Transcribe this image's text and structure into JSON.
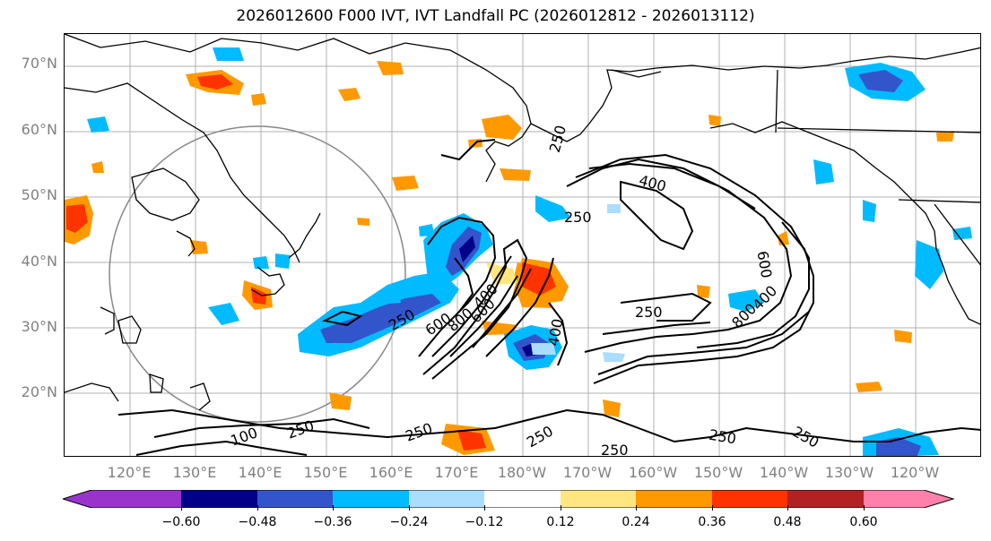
{
  "title": "2026012600 F000 IVT, IVT Landfall PC (2026012812 - 2026013112)",
  "lat_labels": [
    "70°N",
    "60°N",
    "50°N",
    "40°N",
    "30°N",
    "20°N"
  ],
  "lon_labels": [
    "120°E",
    "130°E",
    "140°E",
    "150°E",
    "160°E",
    "170°E",
    "180°W",
    "170°W",
    "160°W",
    "150°W",
    "140°W",
    "130°W",
    "120°W"
  ],
  "colorbar": {
    "ticks": [
      "−0.60",
      "−0.48",
      "−0.36",
      "−0.24",
      "−0.12",
      "0.12",
      "0.24",
      "0.36",
      "0.48",
      "0.60"
    ],
    "bins": [
      {
        "color": "#9933cc"
      },
      {
        "color": "#000088"
      },
      {
        "color": "#3355cc"
      },
      {
        "color": "#00bbff"
      },
      {
        "color": "#aaddff"
      },
      {
        "color": "#ffffff"
      },
      {
        "color": "#ffe680"
      },
      {
        "color": "#ff9900"
      },
      {
        "color": "#ff3300"
      },
      {
        "color": "#b22222"
      },
      {
        "color": "#ff80aa"
      }
    ]
  },
  "contour_labels": [
    "250",
    "400",
    "250",
    "250",
    "600",
    "800",
    "400",
    "600",
    "400",
    "600",
    "250",
    "800",
    "400",
    "100",
    "250",
    "250",
    "250",
    "250",
    "250",
    "250"
  ]
}
